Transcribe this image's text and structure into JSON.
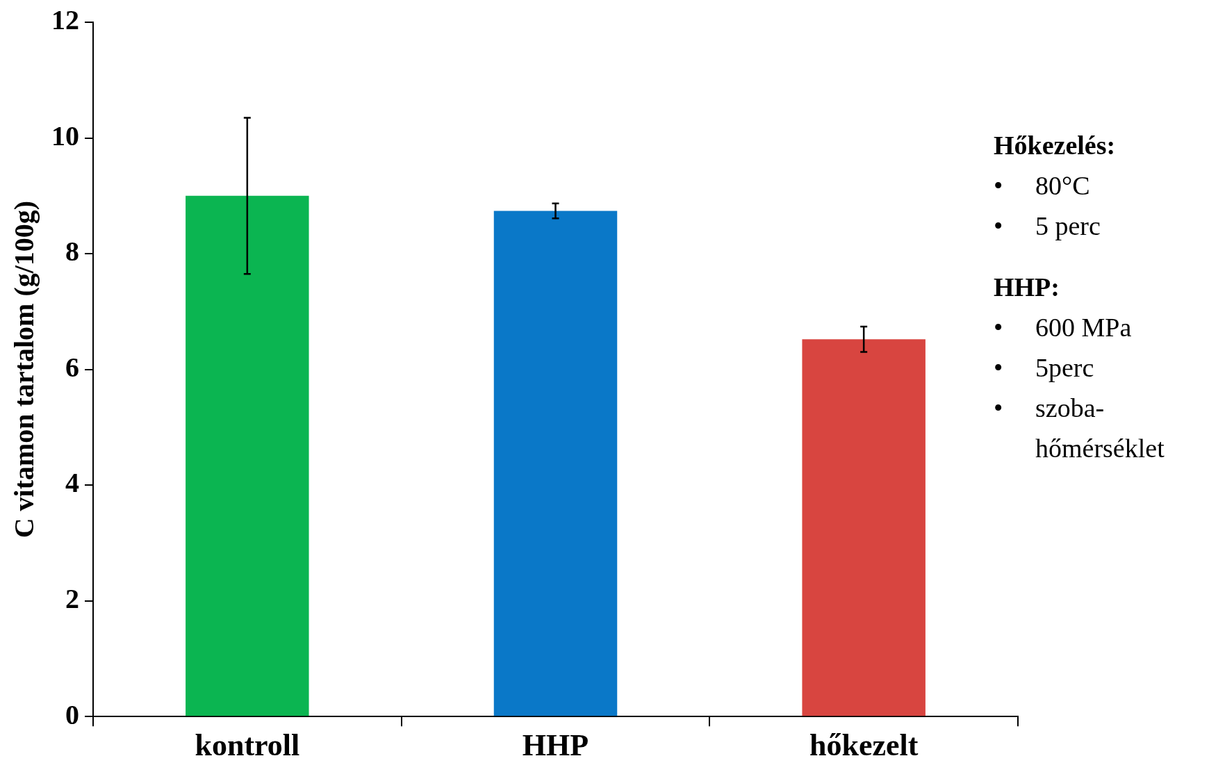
{
  "chart_data": {
    "type": "bar",
    "ylabel": "C vitamon tartalom (g/100g)",
    "categories": [
      "kontroll",
      "HHP",
      "hőkezelt"
    ],
    "values": [
      9.0,
      8.74,
      6.52
    ],
    "errors": [
      1.35,
      0.13,
      0.22
    ],
    "colors": [
      "#0bb551",
      "#0a78c8",
      "#d84540"
    ],
    "ylim": [
      0,
      12
    ],
    "yticks": [
      0,
      2,
      4,
      6,
      8,
      10,
      12
    ],
    "grid": false,
    "legend": false,
    "annotations": [
      "Hőkezelés:",
      "• 80°C",
      "• 5 perc",
      "HHP:",
      "• 600 MPa",
      "• 5perc",
      "• szoba-hőmérséklet"
    ]
  }
}
